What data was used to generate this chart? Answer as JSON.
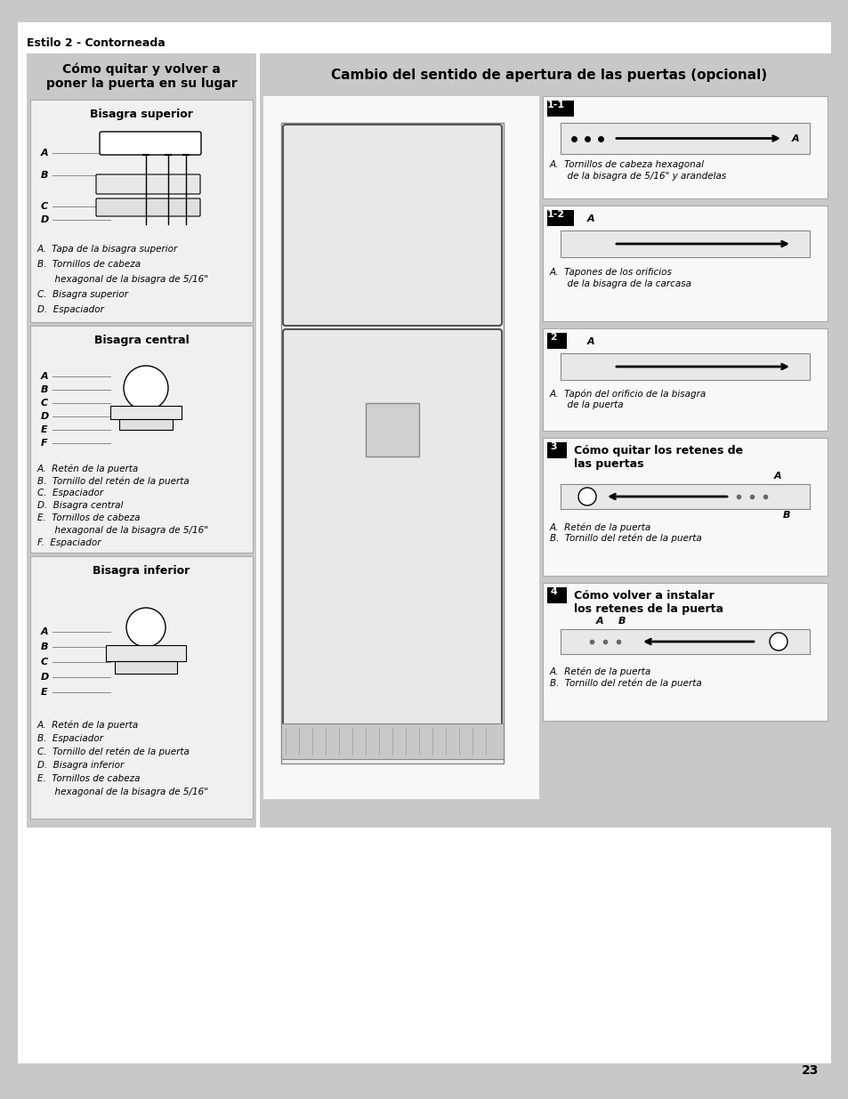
{
  "page_bg": "#c8c8c8",
  "content_bg": "#ffffff",
  "panel_bg": "#d8d8d8",
  "box_bg": "#ffffff",
  "header_bg": "#d0d0d0",
  "title_top": "Estilo 2 - Contorneada",
  "left_panel_title": "Cómo quitar y volver a\nponer la puerta en su lugar",
  "right_panel_title": "Cambio del sentido de apertura de las puertas (opcional)",
  "bisagra_superior_title": "Bisagra superior",
  "bisagra_superior_items": [
    "A.  Tapa de la bisagra superior",
    "B.  Tornillos de cabeza",
    "      hexagonal de la bisagra de 5/16\"",
    "C.  Bisagra superior",
    "D.  Espaciador"
  ],
  "bisagra_central_title": "Bisagra central",
  "bisagra_central_items": [
    "A.  Retén de la puerta",
    "B.  Tornillo del retén de la puerta",
    "C.  Espaciador",
    "D.  Bisagra central",
    "E.  Tornillos de cabeza",
    "      hexagonal de la bisagra de 5/16\"",
    "F.  Espaciador"
  ],
  "bisagra_inferior_title": "Bisagra inferior",
  "bisagra_inferior_items": [
    "A.  Retén de la puerta",
    "B.  Espaciador",
    "C.  Tornillo del retén de la puerta",
    "D.  Bisagra inferior",
    "E.  Tornillos de cabeza",
    "      hexagonal de la bisagra de 5/16\""
  ],
  "step_1_1_caption": [
    "A.  Tornillos de cabeza hexagonal",
    "      de la bisagra de 5/16\" y arandelas"
  ],
  "step_1_2_caption": [
    "A.  Tapones de los orificios",
    "      de la bisagra de la carcasa"
  ],
  "step_2_caption": [
    "A.  Tapón del orificio de la bisagra",
    "      de la puerta"
  ],
  "step_3_heading": "Cómo quitar los retenes de\nlas puertas",
  "step_3_caption": [
    "A.  Retén de la puerta",
    "B.  Tornillo del retén de la puerta"
  ],
  "step_4_heading": "Cómo volver a instalar\nlos retenes de la puerta",
  "step_4_caption": [
    "A.  Retén de la puerta",
    "B.  Tornillo del retén de la puerta"
  ],
  "page_number": "23"
}
